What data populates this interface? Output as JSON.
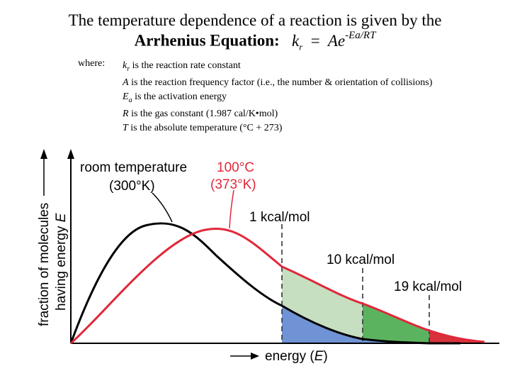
{
  "title": {
    "line1": "The temperature dependence of a reaction is given by the",
    "line2_label": "Arrhenius Equation:",
    "equation": {
      "k": "k",
      "k_sub": "r",
      "equals": "=",
      "A": "Ae",
      "exponent": "-Ea/RT"
    }
  },
  "where_label": "where:",
  "definitions": [
    {
      "symbol": "k",
      "sub": "r",
      "text": " is the reaction rate constant"
    },
    {
      "symbol": "A",
      "sub": "",
      "text": " is the reaction frequency factor (i.e., the number & orientation of collisions)"
    },
    {
      "symbol": "E",
      "sub": "a",
      "text": " is the activation energy"
    },
    {
      "symbol": "R",
      "sub": "",
      "text": " is the gas constant (1.987 cal/K•mol)"
    },
    {
      "symbol": "T",
      "sub": "",
      "text": " is the absolute temperature (°C + 273)"
    }
  ],
  "graph": {
    "y_axis_line1": "fraction of molecules",
    "y_axis_line2": "having energy ",
    "y_axis_var": "E",
    "x_axis_label": "energy (",
    "x_axis_var": "E",
    "x_axis_close": ")",
    "room_temp_line1": "room temperature",
    "room_temp_line2": "(300°K)",
    "hot_line1": "100°C",
    "hot_line2": "(373°K)",
    "threshold_1": "1 kcal/mol",
    "threshold_10": "10 kcal/mol",
    "threshold_19": "19 kcal/mol"
  },
  "colors": {
    "room_curve": "#000000",
    "hot_curve": "#e0283a",
    "fill_light_green": "#c5dfc0",
    "fill_green": "#5cb35f",
    "fill_blue": "#6f93d4",
    "fill_red": "#d8323c",
    "hot_label": "#e0283a"
  }
}
